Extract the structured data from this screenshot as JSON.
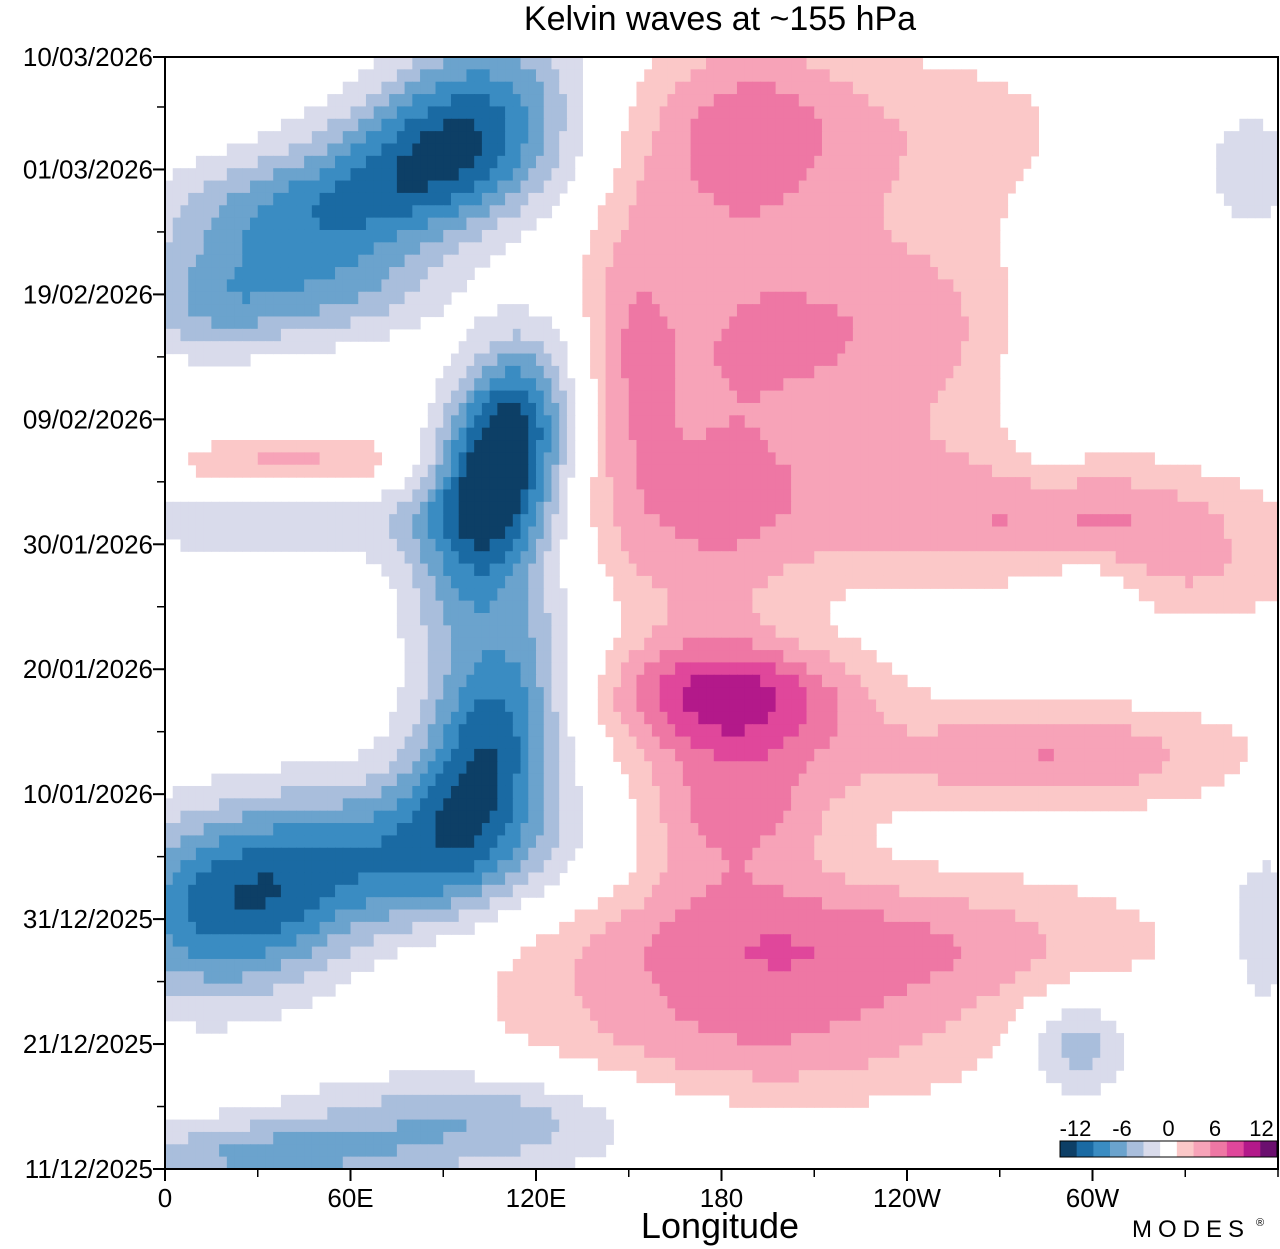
{
  "chart_data": {
    "type": "heatmap",
    "title": "Kelvin waves at ~155 hPa",
    "xlabel": "Longitude",
    "ylabel": "",
    "x_ticks": [
      {
        "lon": 0,
        "label": "0"
      },
      {
        "lon": 60,
        "label": "60E"
      },
      {
        "lon": 120,
        "label": "120E"
      },
      {
        "lon": 180,
        "label": "180"
      },
      {
        "lon": 240,
        "label": "120W"
      },
      {
        "lon": 300,
        "label": "60W"
      }
    ],
    "x_range": [
      0,
      360
    ],
    "y_ticks": [
      {
        "day": 0,
        "label": "11/12/2025"
      },
      {
        "day": 10,
        "label": "21/12/2025"
      },
      {
        "day": 20,
        "label": "31/12/2025"
      },
      {
        "day": 30,
        "label": "10/01/2026"
      },
      {
        "day": 40,
        "label": "20/01/2026"
      },
      {
        "day": 50,
        "label": "30/01/2026"
      },
      {
        "day": 60,
        "label": "09/02/2026"
      },
      {
        "day": 70,
        "label": "19/02/2026"
      },
      {
        "day": 80,
        "label": "01/03/2026"
      },
      {
        "day": 89,
        "label": "10/03/2026"
      }
    ],
    "y_range": [
      0,
      89
    ],
    "colorbar": {
      "levels": [
        -12,
        -10,
        -8,
        -6,
        -4,
        -2,
        2,
        4,
        6,
        8,
        10,
        12
      ],
      "tick_labels": [
        "-12",
        "-6",
        "0",
        "6",
        "12"
      ],
      "colors": [
        "#0d3f66",
        "#1a6aa3",
        "#3a8cc2",
        "#6ba3cd",
        "#a9bedc",
        "#d9dbeb",
        "#ffffff",
        "#fbc8c8",
        "#f7a3b8",
        "#ee77a4",
        "#e0479b",
        "#b3198a",
        "#6b0f6f"
      ]
    },
    "blobs": [
      {
        "lon": 100,
        "day": 85,
        "rx": 22,
        "ry": 5,
        "v": -8,
        "tilt": 0.45
      },
      {
        "lon": 85,
        "day": 80,
        "rx": 30,
        "ry": 4,
        "v": -7,
        "tilt": 0.35
      },
      {
        "lon": 40,
        "day": 76,
        "rx": 32,
        "ry": 3.5,
        "v": -7,
        "tilt": 0.25
      },
      {
        "lon": 55,
        "day": 70,
        "rx": 25,
        "ry": 3,
        "v": -5,
        "tilt": 0.2
      },
      {
        "lon": 15,
        "day": 69,
        "rx": 18,
        "ry": 3,
        "v": -5,
        "tilt": 0.2
      },
      {
        "lon": 110,
        "day": 59,
        "rx": 14,
        "ry": 6,
        "v": -10,
        "tilt": 0.35
      },
      {
        "lon": 105,
        "day": 52,
        "rx": 16,
        "ry": 7,
        "v": -9,
        "tilt": 0.35
      },
      {
        "lon": 40,
        "day": 53,
        "rx": 40,
        "ry": 3,
        "v": -5,
        "tilt": 0.18
      },
      {
        "lon": 105,
        "day": 34,
        "rx": 16,
        "ry": 7,
        "v": -11,
        "tilt": 0.35
      },
      {
        "lon": 70,
        "day": 25,
        "rx": 45,
        "ry": 4.5,
        "v": -8,
        "tilt": 0.32
      },
      {
        "lon": 20,
        "day": 20,
        "rx": 28,
        "ry": 5,
        "v": -9,
        "tilt": 0.2
      },
      {
        "lon": 100,
        "day": 4,
        "rx": 40,
        "ry": 3,
        "v": -6,
        "tilt": 0.25
      },
      {
        "lon": 30,
        "day": 1,
        "rx": 35,
        "ry": 2,
        "v": -6,
        "tilt": 0.1
      },
      {
        "lon": 295,
        "day": 10,
        "rx": 12,
        "ry": 3,
        "v": -6,
        "tilt": 0.1
      },
      {
        "lon": 285,
        "day": 66,
        "rx": 10,
        "ry": 8,
        "v": -3,
        "tilt": 0.0
      },
      {
        "lon": 300,
        "day": 45,
        "rx": 10,
        "ry": 3,
        "v": -3,
        "tilt": 0.0
      },
      {
        "lon": 350,
        "day": 80,
        "rx": 15,
        "ry": 5,
        "v": -3,
        "tilt": 0.0
      },
      {
        "lon": 355,
        "day": 19,
        "rx": 10,
        "ry": 5,
        "v": -4,
        "tilt": 0.0
      },
      {
        "lon": 40,
        "day": 56,
        "rx": 30,
        "ry": 2,
        "v": 7,
        "tilt": 0.2
      },
      {
        "lon": 185,
        "day": 83,
        "rx": 25,
        "ry": 6,
        "v": 6,
        "tilt": 0.2
      },
      {
        "lon": 245,
        "day": 83,
        "rx": 45,
        "ry": 5,
        "v": 3,
        "tilt": 0.15
      },
      {
        "lon": 210,
        "day": 67,
        "rx": 55,
        "ry": 7,
        "v": 6,
        "tilt": 0.25
      },
      {
        "lon": 205,
        "day": 53,
        "rx": 60,
        "ry": 5,
        "v": 4,
        "tilt": 0.2
      },
      {
        "lon": 300,
        "day": 52,
        "rx": 40,
        "ry": 3,
        "v": 5,
        "tilt": 0.2
      },
      {
        "lon": 185,
        "day": 38,
        "rx": 30,
        "ry": 3,
        "v": 8,
        "tilt": 0.1
      },
      {
        "lon": 185,
        "day": 29,
        "rx": 25,
        "ry": 5,
        "v": 6,
        "tilt": 0.2
      },
      {
        "lon": 285,
        "day": 33,
        "rx": 45,
        "ry": 3,
        "v": 6,
        "tilt": 0.2
      },
      {
        "lon": 210,
        "day": 18,
        "rx": 70,
        "ry": 4,
        "v": 7,
        "tilt": 0.2
      },
      {
        "lon": 190,
        "day": 10,
        "rx": 55,
        "ry": 4,
        "v": 5,
        "tilt": 0.2
      },
      {
        "lon": 335,
        "day": 47,
        "rx": 25,
        "ry": 3,
        "v": 3,
        "tilt": 0.0
      },
      {
        "lon": 150,
        "day": 65,
        "rx": 10,
        "ry": 10,
        "v": 3,
        "tilt": 0.0
      },
      {
        "lon": 175,
        "day": 45,
        "rx": 20,
        "ry": 12,
        "v": 3,
        "tilt": 0.0
      }
    ]
  },
  "brand": {
    "logo_text": "MODES",
    "logo_mark": "®"
  }
}
